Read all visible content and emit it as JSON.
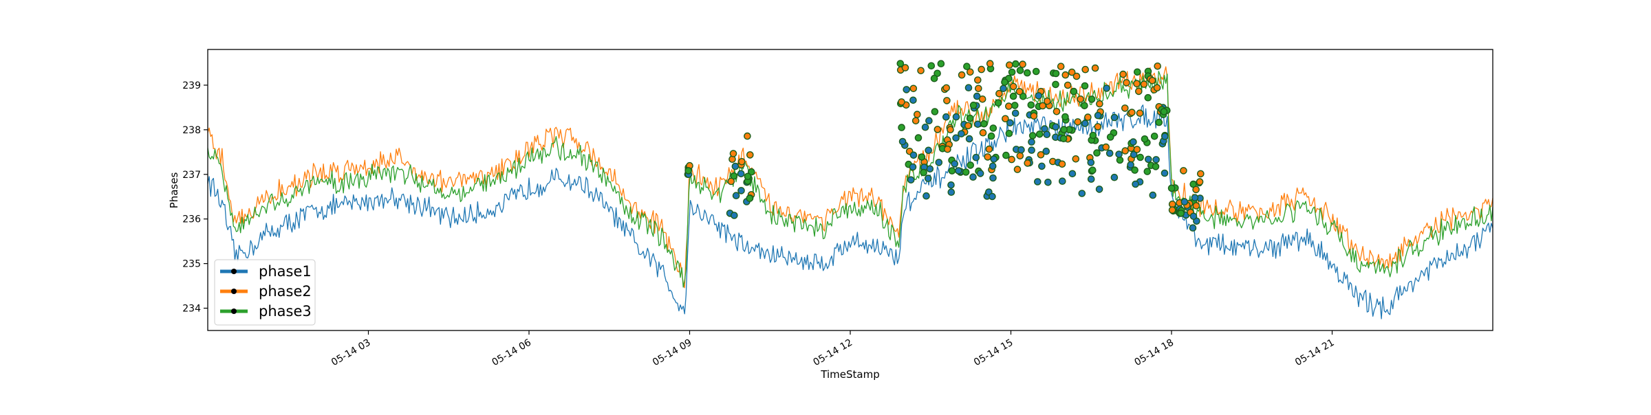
{
  "chart_data": {
    "type": "line",
    "xlabel": "TimeStamp",
    "ylabel": "Phases",
    "x_domain": [
      "05-14 00:00",
      "05-14 23:59"
    ],
    "ylim": [
      233.5,
      239.8
    ],
    "x_ticks": [
      "05-14 03",
      "05-14 06",
      "05-14 09",
      "05-14 12",
      "05-14 15",
      "05-14 18",
      "05-14 21"
    ],
    "y_ticks": [
      234,
      235,
      236,
      237,
      238,
      239
    ],
    "grid": false,
    "legend_position": "lower-left",
    "series": [
      {
        "name": "phase1",
        "color": "#1f77b4",
        "x": [
          "00:00",
          "00:15",
          "00:30",
          "00:45",
          "01:00",
          "01:30",
          "02:00",
          "02:30",
          "03:00",
          "03:30",
          "04:00",
          "04:30",
          "05:00",
          "05:30",
          "06:00",
          "06:30",
          "07:00",
          "07:30",
          "08:00",
          "08:30",
          "08:45",
          "08:55",
          "09:00",
          "09:30",
          "10:00",
          "10:30",
          "11:00",
          "11:30",
          "12:00",
          "12:30",
          "12:55",
          "13:00",
          "13:30",
          "14:00",
          "14:30",
          "15:00",
          "15:30",
          "16:00",
          "16:30",
          "17:00",
          "17:30",
          "17:55",
          "18:00",
          "18:30",
          "19:00",
          "19:30",
          "20:00",
          "20:30",
          "21:00",
          "21:30",
          "22:00",
          "22:30",
          "23:00",
          "23:30",
          "23:59"
        ],
        "y": [
          236.9,
          236.4,
          235.2,
          235.3,
          235.6,
          235.9,
          236.2,
          236.3,
          236.4,
          236.5,
          236.3,
          236.0,
          236.1,
          236.3,
          236.7,
          236.9,
          236.8,
          236.2,
          235.4,
          234.8,
          234.2,
          234.0,
          236.3,
          235.9,
          235.4,
          235.2,
          235.1,
          235.0,
          235.5,
          235.4,
          235.1,
          236.3,
          236.8,
          237.2,
          237.6,
          238.0,
          238.1,
          238.0,
          238.1,
          238.2,
          238.3,
          238.3,
          236.5,
          235.5,
          235.4,
          235.3,
          235.4,
          235.6,
          235.0,
          234.2,
          234.0,
          234.6,
          235.0,
          235.3,
          235.8
        ]
      },
      {
        "name": "phase2",
        "color": "#ff7f0e",
        "x": [
          "00:00",
          "00:15",
          "00:30",
          "00:45",
          "01:00",
          "01:30",
          "02:00",
          "02:30",
          "03:00",
          "03:30",
          "04:00",
          "04:30",
          "05:00",
          "05:30",
          "06:00",
          "06:30",
          "07:00",
          "07:30",
          "08:00",
          "08:30",
          "08:45",
          "08:55",
          "09:00",
          "09:30",
          "10:00",
          "10:30",
          "11:00",
          "11:30",
          "12:00",
          "12:30",
          "12:55",
          "13:00",
          "13:30",
          "14:00",
          "14:30",
          "15:00",
          "15:30",
          "16:00",
          "16:30",
          "17:00",
          "17:30",
          "17:55",
          "18:00",
          "18:30",
          "19:00",
          "19:30",
          "20:00",
          "20:30",
          "21:00",
          "21:30",
          "22:00",
          "22:30",
          "23:00",
          "23:30",
          "23:59"
        ],
        "y": [
          237.8,
          237.4,
          236.0,
          236.1,
          236.4,
          236.7,
          237.0,
          237.1,
          237.2,
          237.4,
          237.0,
          236.8,
          236.9,
          237.1,
          237.6,
          237.9,
          237.7,
          237.0,
          236.2,
          235.8,
          235.0,
          234.6,
          237.1,
          236.7,
          237.4,
          236.3,
          236.1,
          236.0,
          236.5,
          236.4,
          235.6,
          236.9,
          237.5,
          238.5,
          238.3,
          239.1,
          238.8,
          238.7,
          238.8,
          239.0,
          239.1,
          239.2,
          236.8,
          236.3,
          236.2,
          236.1,
          236.3,
          236.5,
          236.0,
          235.2,
          235.0,
          235.5,
          235.9,
          236.1,
          236.3
        ]
      },
      {
        "name": "phase3",
        "color": "#2ca02c",
        "x": [
          "00:00",
          "00:15",
          "00:30",
          "00:45",
          "01:00",
          "01:30",
          "02:00",
          "02:30",
          "03:00",
          "03:30",
          "04:00",
          "04:30",
          "05:00",
          "05:30",
          "06:00",
          "06:30",
          "07:00",
          "07:30",
          "08:00",
          "08:30",
          "08:45",
          "08:55",
          "09:00",
          "09:30",
          "10:00",
          "10:30",
          "11:00",
          "11:30",
          "12:00",
          "12:30",
          "12:55",
          "13:00",
          "13:30",
          "14:00",
          "14:30",
          "15:00",
          "15:30",
          "16:00",
          "16:30",
          "17:00",
          "17:30",
          "17:55",
          "18:00",
          "18:30",
          "19:00",
          "19:30",
          "20:00",
          "20:30",
          "21:00",
          "21:30",
          "22:00",
          "22:30",
          "23:00",
          "23:30",
          "23:59"
        ],
        "y": [
          237.5,
          237.2,
          235.7,
          235.9,
          236.2,
          236.5,
          236.8,
          236.8,
          237.0,
          237.1,
          236.8,
          236.6,
          236.7,
          236.9,
          237.4,
          237.6,
          237.4,
          236.8,
          236.0,
          235.6,
          234.9,
          234.5,
          237.0,
          236.5,
          237.2,
          236.1,
          235.9,
          235.8,
          236.3,
          236.2,
          235.4,
          236.8,
          237.3,
          238.3,
          238.2,
          239.0,
          238.7,
          238.6,
          238.7,
          238.9,
          239.0,
          239.1,
          236.7,
          236.1,
          236.0,
          235.9,
          236.1,
          236.3,
          235.8,
          235.0,
          234.8,
          235.3,
          235.7,
          235.9,
          236.2
        ]
      }
    ],
    "marker_clusters": [
      {
        "from": "08:58",
        "to": "09:00",
        "y_low": 237.0,
        "y_high": 237.2
      },
      {
        "from": "09:45",
        "to": "10:10",
        "y_low": 235.9,
        "y_high": 237.9
      },
      {
        "from": "12:55",
        "to": "17:57",
        "y_low": 236.2,
        "y_high": 239.5
      },
      {
        "from": "18:00",
        "to": "18:35",
        "y_low": 235.8,
        "y_high": 237.1
      }
    ]
  }
}
